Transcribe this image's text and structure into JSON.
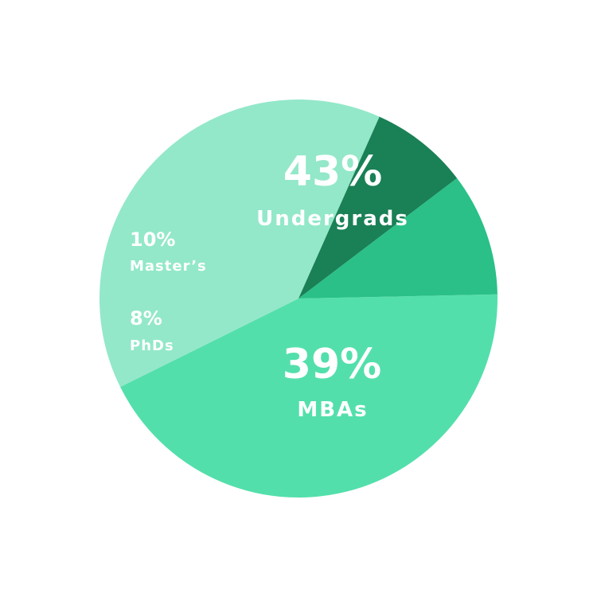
{
  "chart_data": {
    "type": "pie",
    "legend": "none",
    "slices": [
      {
        "label": "Undergrads",
        "value": 43,
        "value_label": "43%",
        "color": "#53dfab"
      },
      {
        "label": "MBAs",
        "value": 39,
        "value_label": "39%",
        "color": "#93e8c9"
      },
      {
        "label": "PhDs",
        "value": 8,
        "value_label": "8%",
        "color": "#1a8056"
      },
      {
        "label": "Master’s",
        "value": 10,
        "value_label": "10%",
        "color": "#2ac087"
      }
    ]
  }
}
